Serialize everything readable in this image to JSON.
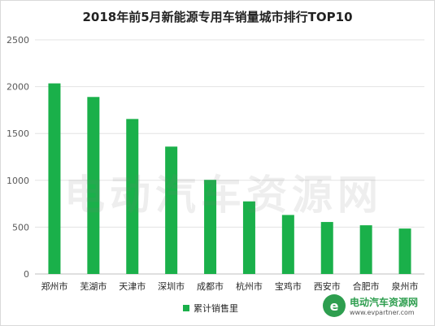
{
  "chart_data": {
    "type": "bar",
    "title": "2018年前5月新能源专用车销量城市排行TOP10",
    "categories": [
      "郑州市",
      "芜湖市",
      "天津市",
      "深圳市",
      "成都市",
      "杭州市",
      "宝鸡市",
      "西安市",
      "合肥市",
      "泉州市"
    ],
    "series": [
      {
        "name": "累计销售里",
        "values": [
          2035,
          1890,
          1655,
          1360,
          1005,
          775,
          630,
          555,
          520,
          485
        ],
        "color": "#1ab04a"
      }
    ],
    "ylim": [
      0,
      2500
    ],
    "yticks": [
      0,
      500,
      1000,
      1500,
      2000,
      2500
    ],
    "grid": true,
    "legend": "bottom"
  },
  "watermark": "电动汽车资源网",
  "logo": {
    "name": "电动汽车资源网",
    "url": "www.evpartner.com"
  }
}
